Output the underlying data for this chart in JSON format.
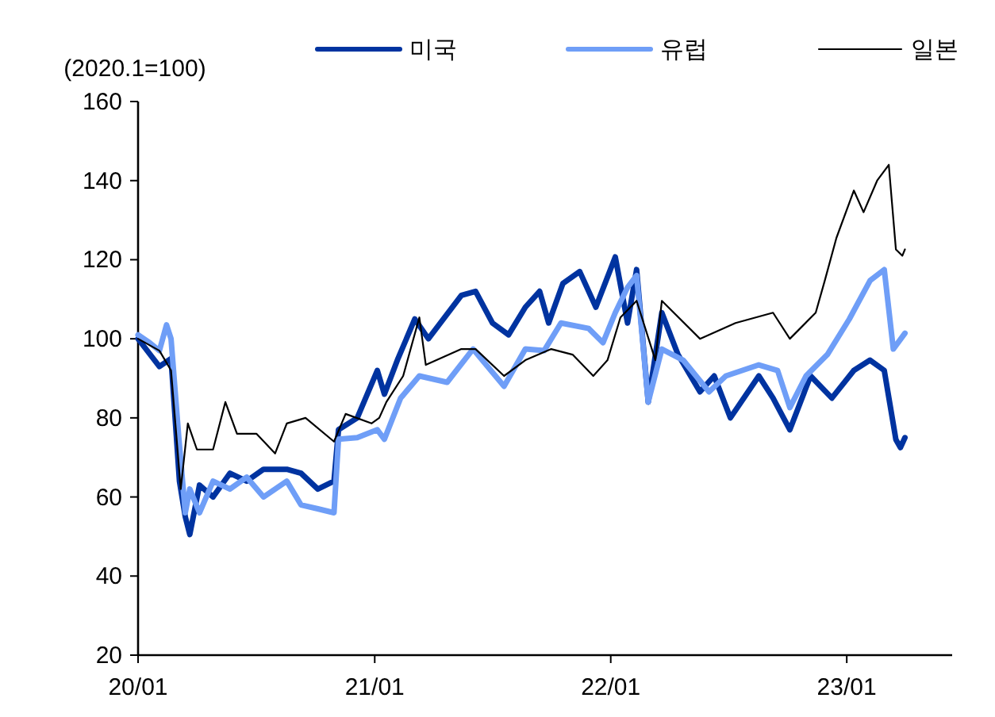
{
  "chart_data": {
    "type": "line",
    "ylabel": "(2020.1=100)",
    "xlim": [
      "2020-01-01",
      "2023-06-13"
    ],
    "ylim": [
      20,
      160
    ],
    "xticks": [
      {
        "value": "2020-01-01",
        "label": "20/01"
      },
      {
        "value": "2021-01-01",
        "label": "21/01"
      },
      {
        "value": "2022-01-01",
        "label": "22/01"
      },
      {
        "value": "2023-01-01",
        "label": "23/01"
      }
    ],
    "yticks": [
      20,
      40,
      60,
      80,
      100,
      120,
      140,
      160
    ],
    "grid": false,
    "legend": "top",
    "marker": "none",
    "line_style": "solid",
    "series": [
      {
        "name": "미국",
        "color": "#0033a0",
        "x": [
          "2020-01-01",
          "2020-02-03",
          "2020-02-21",
          "2020-03-05",
          "2020-03-14",
          "2020-03-21",
          "2020-04-05",
          "2020-04-26",
          "2020-05-22",
          "2020-06-17",
          "2020-07-13",
          "2020-08-18",
          "2020-09-09",
          "2020-10-05",
          "2020-10-30",
          "2020-11-06",
          "2020-12-05",
          "2021-01-05",
          "2021-01-16",
          "2021-02-06",
          "2021-03-04",
          "2021-03-25",
          "2021-05-15",
          "2021-06-06",
          "2021-07-02",
          "2021-07-27",
          "2021-08-22",
          "2021-09-13",
          "2021-09-27",
          "2021-10-19",
          "2021-11-14",
          "2021-12-09",
          "2022-01-08",
          "2022-01-27",
          "2022-02-10",
          "2022-02-28",
          "2022-03-21",
          "2022-04-15",
          "2022-05-19",
          "2022-06-10",
          "2022-07-05",
          "2022-08-18",
          "2022-09-09",
          "2022-10-05",
          "2022-11-06",
          "2022-12-09",
          "2023-01-12",
          "2023-02-06",
          "2023-02-28",
          "2023-03-18",
          "2023-03-25",
          "2023-04-01"
        ],
        "values": [
          100,
          93,
          95,
          64,
          55,
          50.5,
          63,
          60,
          66,
          64,
          67,
          67,
          66,
          62,
          64,
          77,
          80,
          92,
          86,
          95,
          105,
          100,
          111,
          112,
          104,
          101,
          108,
          112,
          104,
          114,
          117,
          108,
          120.7,
          104,
          117.5,
          84,
          106.6,
          96,
          86.6,
          90.6,
          80,
          90.6,
          85,
          77,
          90.6,
          85,
          92,
          94.6,
          92,
          74.5,
          72.5,
          75
        ]
      },
      {
        "name": "유럽",
        "color": "#6f9ef7",
        "x": [
          "2020-01-01",
          "2020-01-19",
          "2020-02-03",
          "2020-02-14",
          "2020-02-21",
          "2020-03-04",
          "2020-03-14",
          "2020-03-21",
          "2020-04-05",
          "2020-04-26",
          "2020-05-22",
          "2020-06-17",
          "2020-07-13",
          "2020-08-18",
          "2020-09-09",
          "2020-10-05",
          "2020-10-30",
          "2020-11-06",
          "2020-12-05",
          "2021-01-05",
          "2021-01-16",
          "2021-02-10",
          "2021-03-11",
          "2021-04-23",
          "2021-06-02",
          "2021-07-20",
          "2021-08-22",
          "2021-09-20",
          "2021-10-16",
          "2021-11-28",
          "2021-12-20",
          "2022-01-08",
          "2022-01-27",
          "2022-02-10",
          "2022-02-28",
          "2022-03-21",
          "2022-04-23",
          "2022-06-02",
          "2022-06-28",
          "2022-08-18",
          "2022-09-16",
          "2022-10-05",
          "2022-10-30",
          "2022-12-02",
          "2023-01-05",
          "2023-02-06",
          "2023-02-28",
          "2023-03-14",
          "2023-04-01"
        ],
        "values": [
          101,
          99,
          97,
          103.5,
          100,
          75,
          56,
          62,
          56,
          64,
          62,
          65,
          60,
          64,
          58,
          57,
          56,
          74.6,
          75,
          77,
          74.6,
          85,
          90.6,
          89,
          97.4,
          88,
          97.4,
          97,
          104,
          102.6,
          99,
          106.6,
          113,
          116,
          84,
          97.4,
          94.6,
          86.6,
          90.6,
          93.4,
          92,
          82.6,
          90.6,
          96,
          105,
          114.7,
          117.5,
          97.4,
          101.4
        ]
      },
      {
        "name": "일본",
        "color": "#000000",
        "x": [
          "2020-01-01",
          "2020-02-03",
          "2020-02-21",
          "2020-03-07",
          "2020-03-18",
          "2020-04-01",
          "2020-04-26",
          "2020-05-15",
          "2020-06-02",
          "2020-07-02",
          "2020-07-31",
          "2020-08-18",
          "2020-09-16",
          "2020-10-30",
          "2020-11-17",
          "2020-12-27",
          "2021-01-08",
          "2021-01-19",
          "2021-02-14",
          "2021-03-11",
          "2021-03-21",
          "2021-05-15",
          "2021-06-06",
          "2021-07-20",
          "2021-08-22",
          "2021-10-01",
          "2021-11-03",
          "2021-12-05",
          "2021-12-27",
          "2022-01-16",
          "2022-02-10",
          "2022-03-11",
          "2022-03-21",
          "2022-05-19",
          "2022-07-13",
          "2022-09-09",
          "2022-10-05",
          "2022-11-14",
          "2022-11-28",
          "2022-12-16",
          "2023-01-12",
          "2023-01-27",
          "2023-02-17",
          "2023-03-07",
          "2023-03-18",
          "2023-03-28",
          "2023-04-01"
        ],
        "values": [
          100,
          97,
          92,
          62,
          78.6,
          72,
          72,
          84,
          76,
          76,
          71,
          78.6,
          80,
          74,
          81,
          78.6,
          80,
          84,
          90.6,
          105.4,
          93.4,
          97.4,
          97.4,
          90.6,
          94.6,
          97.4,
          96,
          90.6,
          94.6,
          105.4,
          109.6,
          94.6,
          109.6,
          100,
          104,
          106.6,
          100,
          106.6,
          114.7,
          125.5,
          137.5,
          132,
          140,
          144,
          122.6,
          121,
          122.6
        ]
      }
    ]
  }
}
